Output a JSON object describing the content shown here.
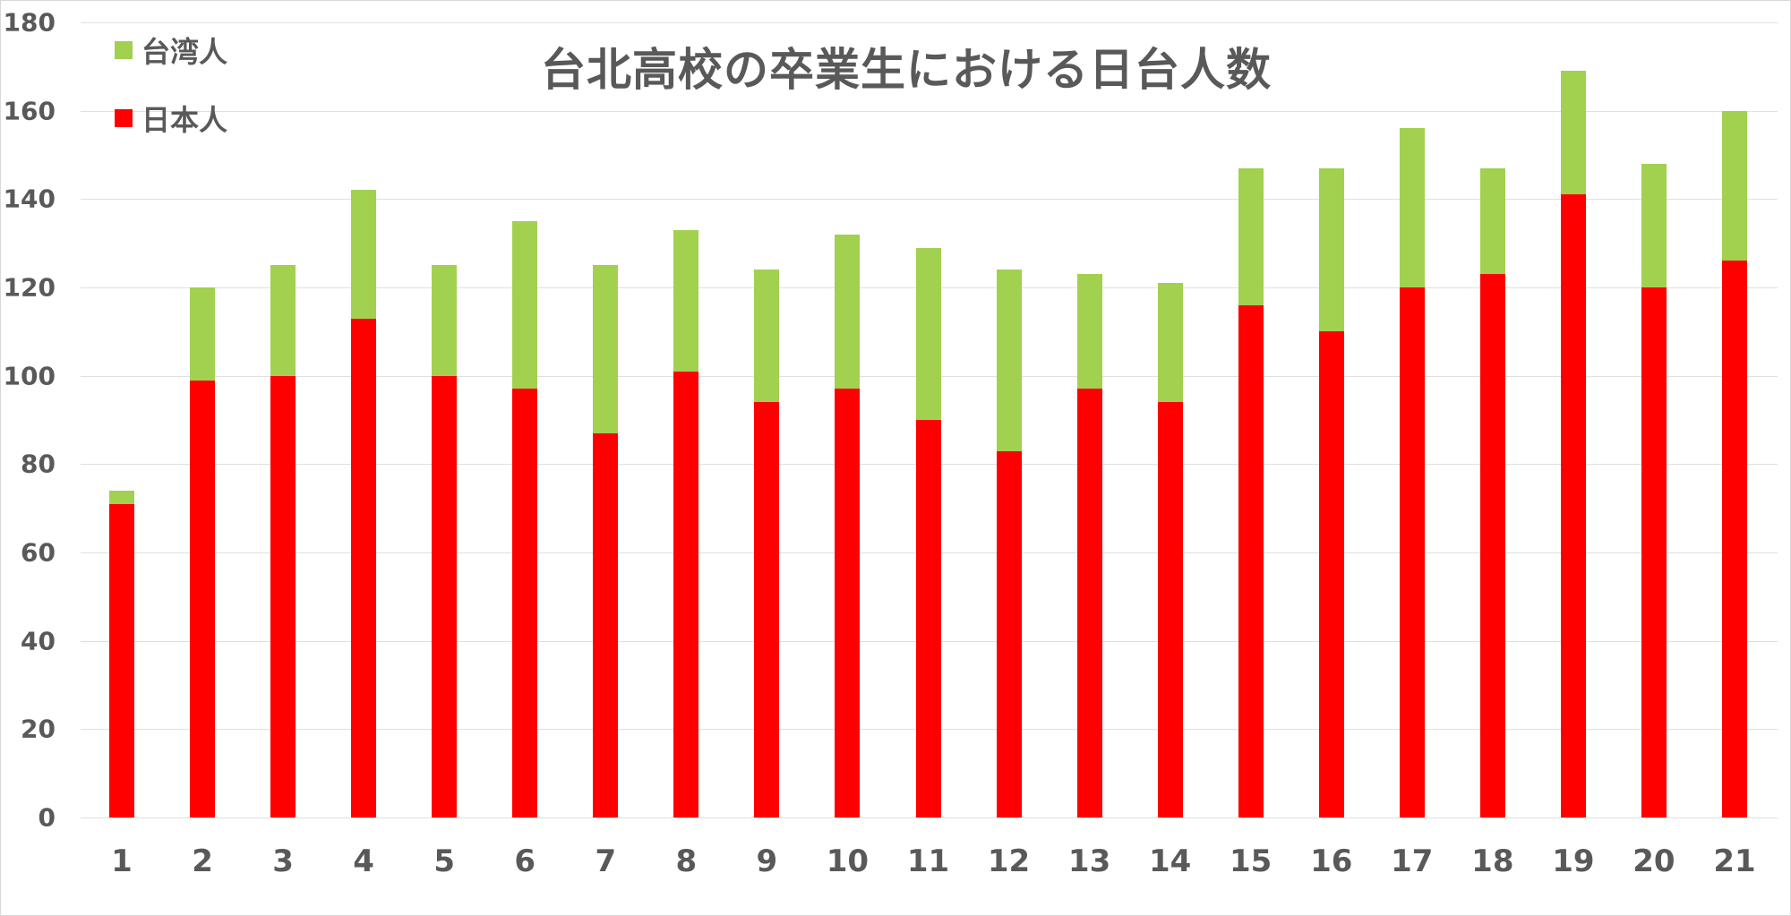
{
  "chart_data": {
    "type": "bar",
    "stacked": true,
    "title": "台北高校の卒業生における日台人数",
    "xlabel": "",
    "ylabel": "",
    "ylim": [
      0,
      180
    ],
    "yticks": [
      0,
      20,
      40,
      60,
      80,
      100,
      120,
      140,
      160,
      180
    ],
    "grid": true,
    "legend_position": "top-left",
    "categories": [
      "1",
      "2",
      "3",
      "4",
      "5",
      "6",
      "7",
      "8",
      "9",
      "10",
      "11",
      "12",
      "13",
      "14",
      "15",
      "16",
      "17",
      "18",
      "19",
      "20",
      "21"
    ],
    "series": [
      {
        "name": "日本人",
        "color": "#ff0000",
        "values": [
          71,
          99,
          100,
          113,
          100,
          97,
          87,
          101,
          94,
          97,
          90,
          83,
          97,
          94,
          116,
          110,
          120,
          123,
          141,
          120,
          126
        ]
      },
      {
        "name": "台湾人",
        "color": "#a2d04f",
        "values": [
          3,
          21,
          25,
          29,
          25,
          38,
          38,
          32,
          30,
          35,
          39,
          41,
          26,
          27,
          31,
          37,
          36,
          24,
          28,
          28,
          34
        ]
      }
    ],
    "totals": [
      74,
      120,
      125,
      142,
      125,
      135,
      125,
      133,
      124,
      132,
      129,
      124,
      123,
      121,
      147,
      147,
      156,
      147,
      169,
      148,
      160
    ]
  },
  "legend": {
    "items": [
      {
        "label": "台湾人",
        "color": "#a2d04f"
      },
      {
        "label": "日本人",
        "color": "#ff0000"
      }
    ]
  }
}
